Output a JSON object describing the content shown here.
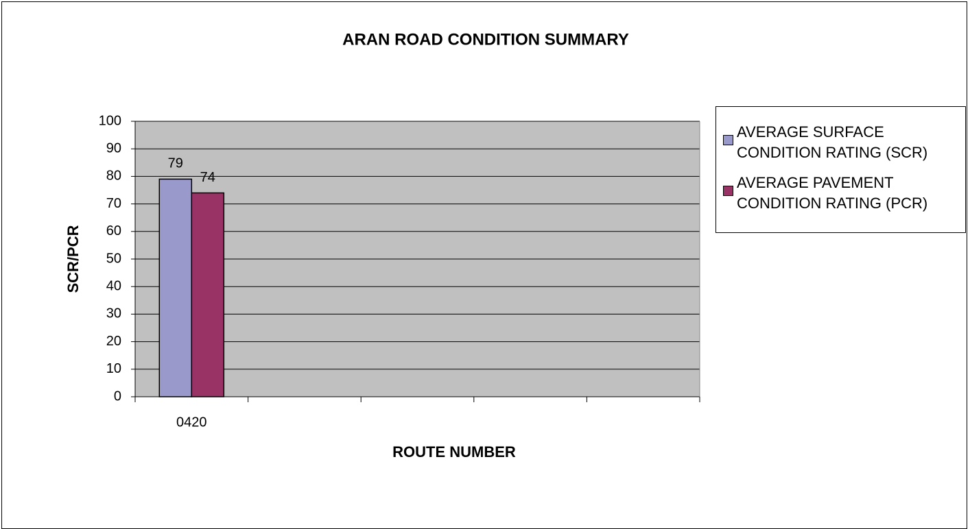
{
  "chart_data": {
    "type": "bar",
    "title": "ARAN ROAD CONDITION SUMMARY",
    "x_label": "ROUTE NUMBER",
    "y_label": "SCR/PCR",
    "categories": [
      "0420",
      null,
      null,
      null,
      null
    ],
    "series": [
      {
        "name": "AVERAGE SURFACE CONDITION RATING (SCR)",
        "color": "#9999cc",
        "values": [
          79,
          null,
          null,
          null,
          null
        ]
      },
      {
        "name": "AVERAGE PAVEMENT CONDITION RATING (PCR)",
        "color": "#993366",
        "values": [
          74,
          null,
          null,
          null,
          null
        ]
      }
    ],
    "ylim": [
      0,
      100
    ],
    "yticks": [
      0,
      10,
      20,
      30,
      40,
      50,
      60,
      70,
      80,
      90,
      100
    ],
    "grid": true,
    "plot_background": "#c0c0c0",
    "legend": "right"
  }
}
